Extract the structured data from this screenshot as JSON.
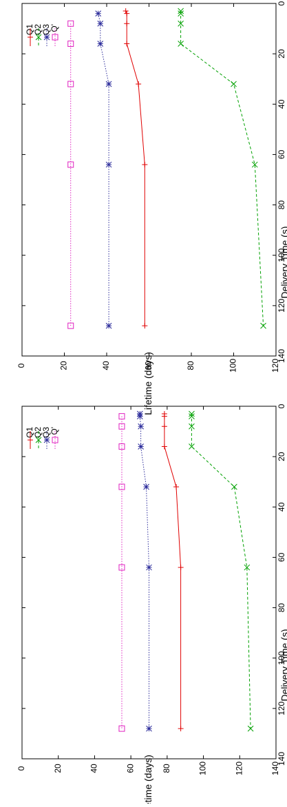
{
  "chart_data": [
    {
      "type": "line",
      "xlabel": "Delivery Time (s)",
      "ylabel": "Lifetime (days)",
      "xlim": [
        0,
        140
      ],
      "ylim": [
        0,
        120
      ],
      "xticks": [
        0,
        20,
        40,
        60,
        80,
        100,
        120,
        140
      ],
      "yticks": [
        0,
        20,
        40,
        60,
        80,
        100,
        120
      ],
      "grid": false,
      "legend_position": "top-left",
      "series": [
        {
          "name": "Q1",
          "color": "#e00000",
          "marker": "plus",
          "dash": "solid",
          "x": [
            3,
            4,
            8,
            16,
            32,
            64,
            128
          ],
          "y": [
            49,
            49.5,
            49.5,
            49.5,
            55,
            58,
            58
          ]
        },
        {
          "name": "Q2",
          "color": "#00a000",
          "marker": "x",
          "dash": "dashed",
          "x": [
            3,
            4,
            8,
            16,
            32,
            64,
            128
          ],
          "y": [
            75,
            75,
            75,
            75,
            100,
            110,
            114
          ]
        },
        {
          "name": "Q3",
          "color": "#2a2a9a",
          "marker": "star",
          "dash": "dotted",
          "x": [
            4,
            8,
            16,
            32,
            64,
            128
          ],
          "y": [
            36,
            37,
            37,
            41,
            41,
            41
          ]
        },
        {
          "name": "Q'",
          "color": "#e020c0",
          "marker": "square",
          "dash": "dotted",
          "x": [
            8,
            16,
            32,
            64,
            128
          ],
          "y": [
            23,
            23,
            23,
            23,
            23
          ]
        }
      ]
    },
    {
      "type": "line",
      "xlabel": "Delivery Time (s)",
      "ylabel": "Lifetime (days)",
      "xlim": [
        0,
        140
      ],
      "ylim": [
        0,
        140
      ],
      "xticks": [
        0,
        20,
        40,
        60,
        80,
        100,
        120,
        140
      ],
      "yticks": [
        0,
        20,
        40,
        60,
        80,
        100,
        120,
        140
      ],
      "grid": false,
      "legend_position": "top-left",
      "series": [
        {
          "name": "Q1",
          "color": "#e00000",
          "marker": "plus",
          "dash": "solid",
          "x": [
            3,
            4,
            8,
            16,
            32,
            64,
            128
          ],
          "y": [
            78.5,
            78.5,
            78.5,
            78.5,
            85,
            87.5,
            87.5
          ]
        },
        {
          "name": "Q2",
          "color": "#00a000",
          "marker": "x",
          "dash": "dashed",
          "x": [
            3,
            4,
            8,
            16,
            32,
            64,
            128
          ],
          "y": [
            93.5,
            93.5,
            93.5,
            93.5,
            117,
            124,
            126
          ]
        },
        {
          "name": "Q3",
          "color": "#2a2a9a",
          "marker": "star",
          "dash": "dotted",
          "x": [
            3,
            4,
            8,
            16,
            32,
            64,
            128
          ],
          "y": [
            65,
            65,
            65.5,
            65.5,
            68.5,
            70,
            70
          ]
        },
        {
          "name": "Q'",
          "color": "#e020c0",
          "marker": "square",
          "dash": "dotted",
          "x": [
            4,
            8,
            16,
            32,
            64,
            128
          ],
          "y": [
            55,
            55,
            55,
            55,
            55,
            55
          ]
        }
      ]
    }
  ]
}
